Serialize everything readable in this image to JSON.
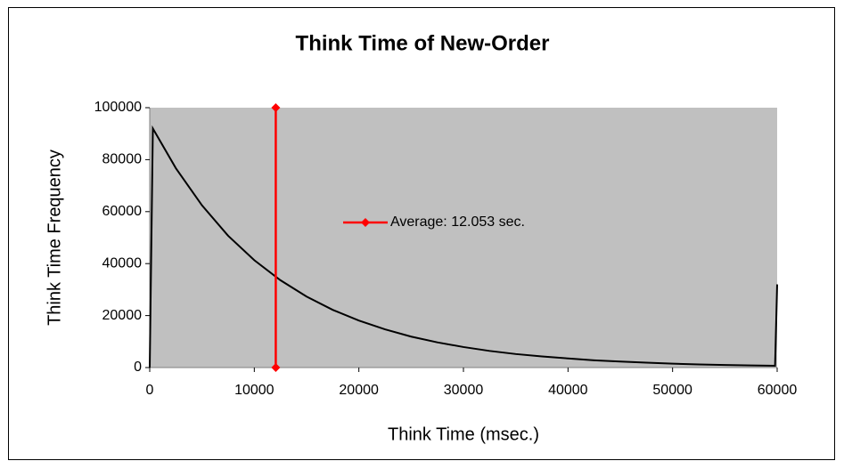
{
  "chart_data": {
    "type": "line",
    "title": "Think Time of New-Order",
    "xlabel": "Think Time (msec.)",
    "ylabel": "Think Time Frequency",
    "xlim": [
      0,
      60000
    ],
    "xticks": [
      0,
      10000,
      20000,
      30000,
      40000,
      50000,
      60000
    ],
    "ylim": [
      0,
      100000
    ],
    "yticks": [
      0,
      20000,
      40000,
      60000,
      80000,
      100000
    ],
    "grid": false,
    "series": [
      {
        "color": "#000000",
        "x": [
          0,
          300,
          2500,
          5000,
          7500,
          10000,
          12500,
          15000,
          17500,
          20000,
          22500,
          25000,
          27500,
          30000,
          32500,
          35000,
          37500,
          40000,
          42500,
          45000,
          47500,
          50000,
          52500,
          55000,
          57500,
          59800,
          60000
        ],
        "values": [
          0,
          92000,
          76700,
          62400,
          50700,
          41300,
          33600,
          27300,
          22200,
          18100,
          14700,
          11900,
          9700,
          7900,
          6400,
          5200,
          4300,
          3500,
          2800,
          2300,
          1900,
          1500,
          1200,
          1000,
          800,
          700,
          32000
        ]
      },
      {
        "name": "Average: 12.053 sec.",
        "color": "#ff0000",
        "marker": "diamond",
        "x": [
          12053,
          12053
        ],
        "values": [
          0,
          100000
        ]
      }
    ]
  }
}
